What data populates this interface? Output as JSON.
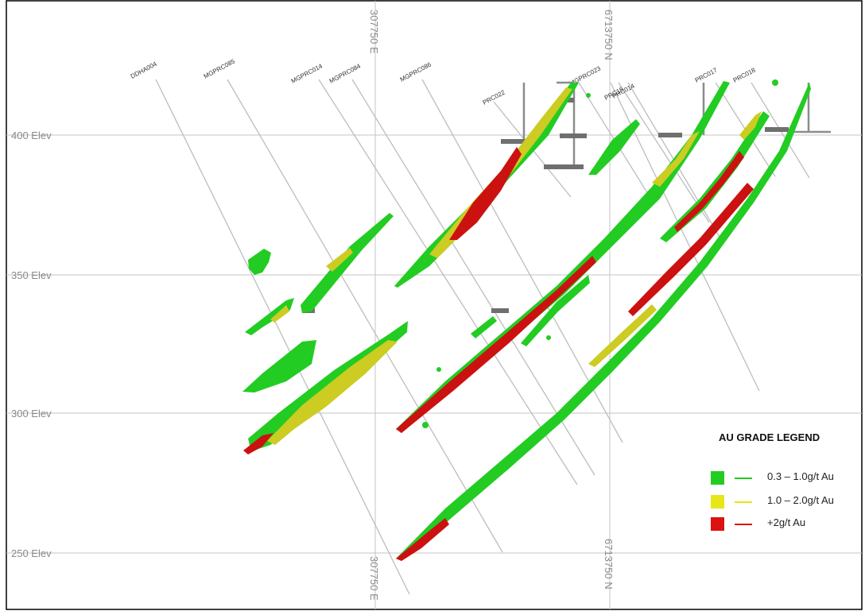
{
  "elevations": [
    "400 Elev",
    "350 Elev",
    "300 Elev",
    "250 Elev"
  ],
  "easting": {
    "top": "307750 E",
    "bottom": "307750 E"
  },
  "northing": {
    "top": "6713750 N",
    "bottom": "6713750 N"
  },
  "drill_holes": [
    "DDHA004",
    "MGPRC085",
    "MGPRC014",
    "MGPRC084",
    "MGPRC086",
    "PRC022",
    "MGPRC023",
    "PRC15",
    "PRC014",
    "PRC017",
    "PRC018"
  ],
  "legend": {
    "title": "AU GRADE LEGEND",
    "items": [
      {
        "label": "0.3 – 1.0g/t Au",
        "color": "#22cc22"
      },
      {
        "label": "1.0 – 2.0g/t Au",
        "color": "#e6e619"
      },
      {
        "label": "+2g/t Au",
        "color": "#dd1111"
      }
    ]
  },
  "colors": {
    "low_grade": "#22cc22",
    "mid_grade": "#cccc22",
    "high_grade": "#cc1111",
    "grid": "#c4c4c4",
    "trace": "#bdbdbd"
  }
}
